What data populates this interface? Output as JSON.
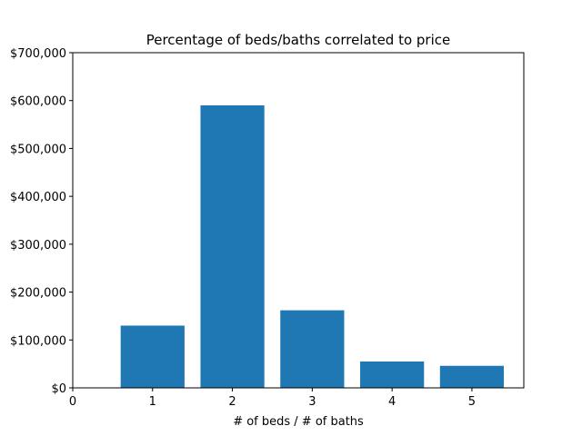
{
  "chart_data": {
    "type": "bar",
    "title": "Percentage of beds/baths correlated to price",
    "xlabel": "# of beds / # of baths",
    "ylabel": "",
    "categories": [
      "1",
      "2",
      "3",
      "4",
      "5"
    ],
    "x": [
      1,
      2,
      3,
      4,
      5
    ],
    "values": [
      130000,
      590000,
      162000,
      55000,
      46000
    ],
    "xlim": [
      0,
      5.65
    ],
    "ylim": [
      0,
      700000
    ],
    "x_ticks": [
      0,
      1,
      2,
      3,
      4,
      5
    ],
    "x_tick_labels": [
      "0",
      "1",
      "2",
      "3",
      "4",
      "5"
    ],
    "y_ticks": [
      0,
      100000,
      200000,
      300000,
      400000,
      500000,
      600000,
      700000
    ],
    "y_tick_labels": [
      "$0",
      "$100,000",
      "$200,000",
      "$300,000",
      "$400,000",
      "$500,000",
      "$600,000",
      "$700,000"
    ],
    "bar_color": "#1f77b4",
    "grid": false,
    "legend": "none"
  }
}
